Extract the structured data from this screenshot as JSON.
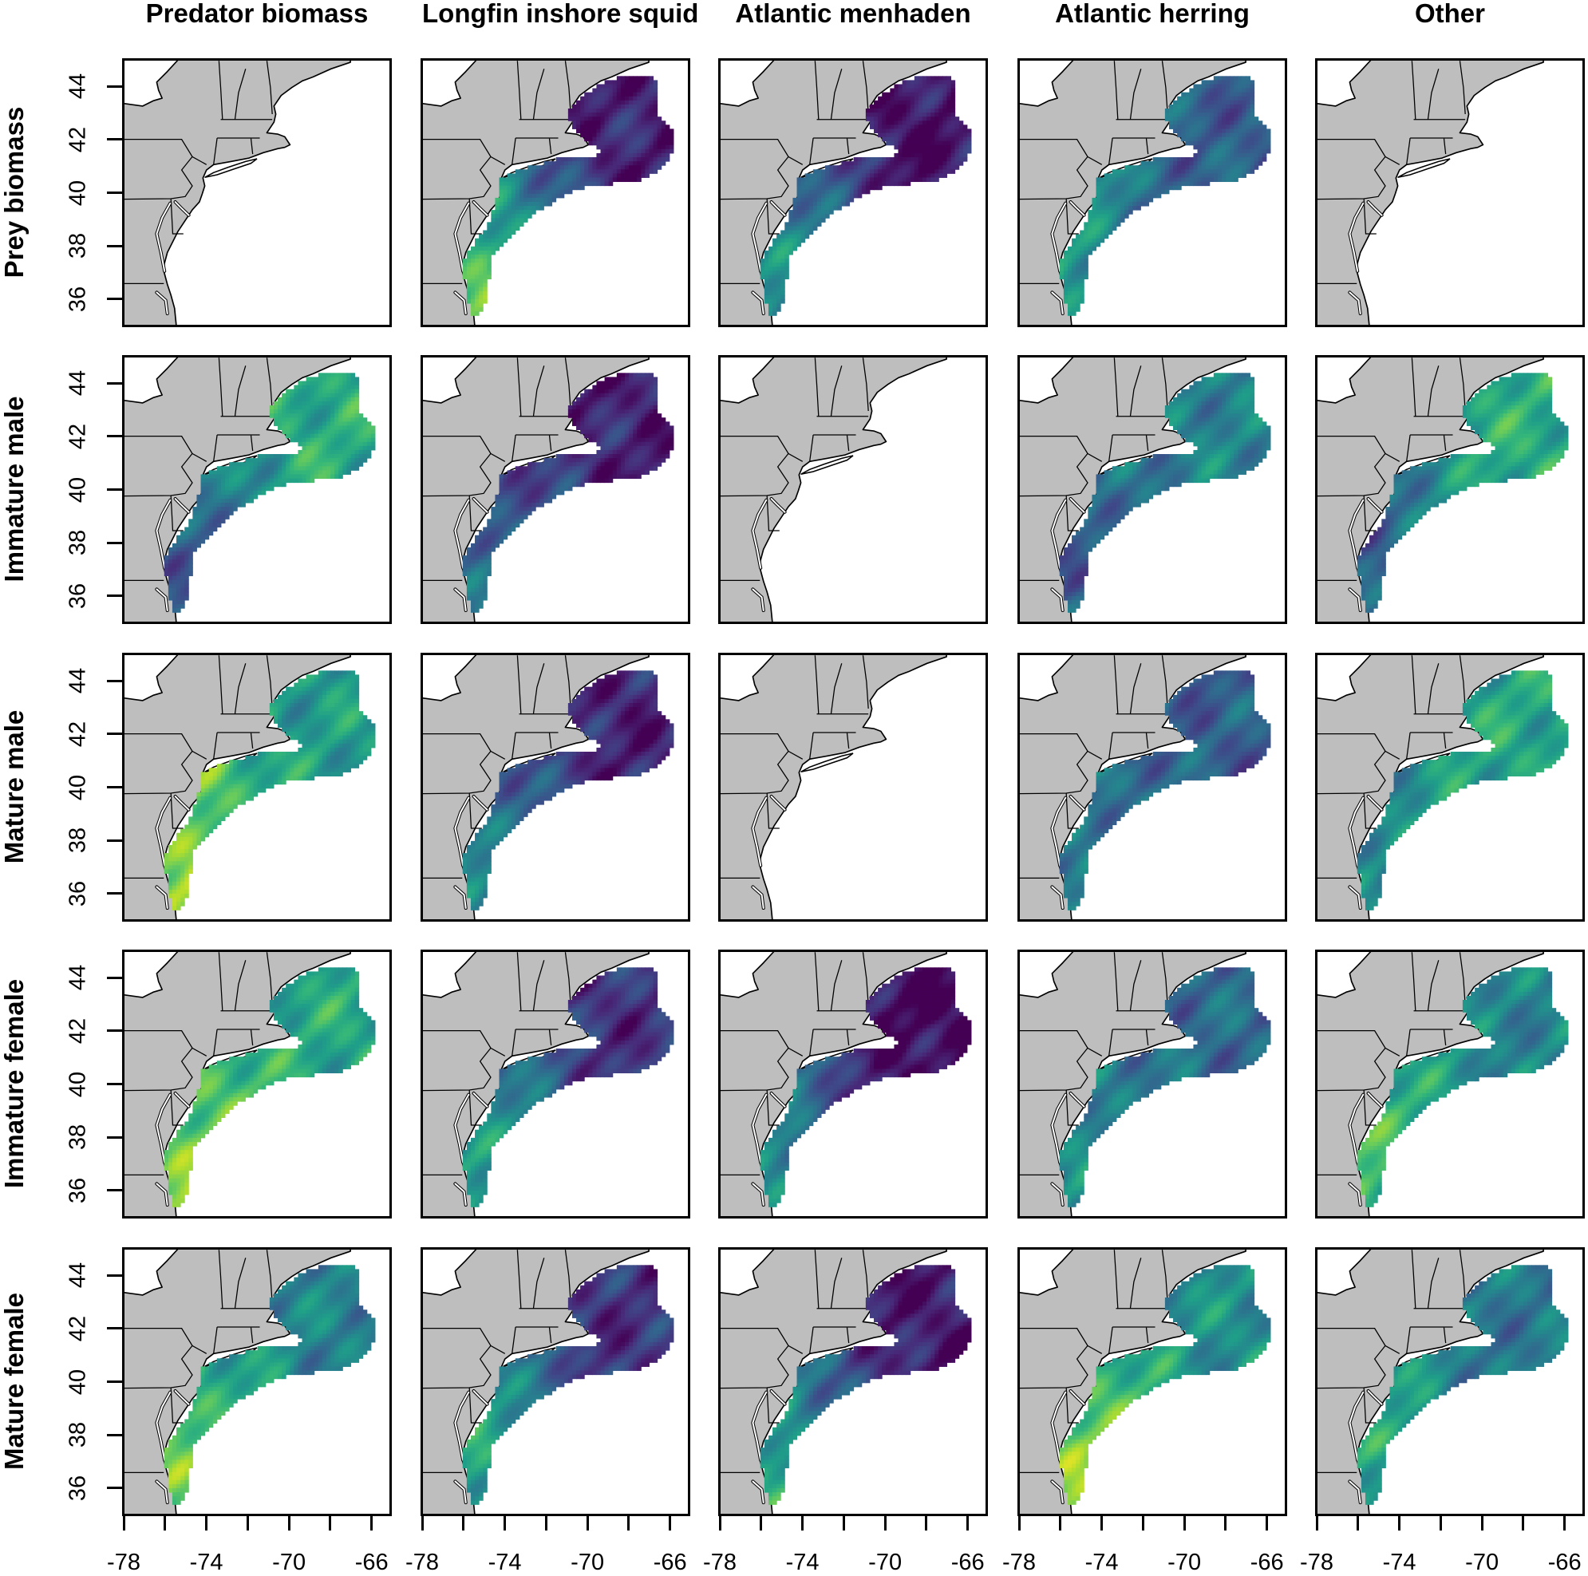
{
  "chart_data": {
    "type": "heatmap",
    "colormap": "viridis",
    "column_titles": [
      "Predator biomass",
      "Longfin inshore squid",
      "Atlantic menhaden",
      "Atlantic herring",
      "Other"
    ],
    "row_labels": [
      "Prey biomass",
      "Immature male",
      "Mature male",
      "Immature female",
      "Mature female"
    ],
    "x_ticks": [
      "-78",
      "-74",
      "-70",
      "-66"
    ],
    "x_tick_values": [
      -78,
      -74,
      -70,
      -66
    ],
    "y_ticks": [
      "44",
      "42",
      "40",
      "38",
      "36"
    ],
    "y_tick_values": [
      44,
      42,
      40,
      38,
      36
    ],
    "xlim": [
      -78,
      -65.1
    ],
    "ylim": [
      35,
      45
    ],
    "land_color": "#bebebe",
    "panels": [
      [
        {
          "has_data": false
        },
        {
          "has_data": true,
          "level_south": 0.72,
          "level_north": 0.1
        },
        {
          "has_data": true,
          "level_south": 0.5,
          "level_north": 0.05
        },
        {
          "has_data": true,
          "level_south": 0.55,
          "level_north": 0.3
        },
        {
          "has_data": false
        }
      ],
      [
        {
          "has_data": true,
          "level_south": 0.3,
          "level_north": 0.62
        },
        {
          "has_data": true,
          "level_south": 0.35,
          "level_north": 0.1
        },
        {
          "has_data": false
        },
        {
          "has_data": true,
          "level_south": 0.3,
          "level_north": 0.45
        },
        {
          "has_data": true,
          "level_south": 0.3,
          "level_north": 0.62
        }
      ],
      [
        {
          "has_data": true,
          "level_south": 0.85,
          "level_north": 0.55
        },
        {
          "has_data": true,
          "level_south": 0.45,
          "level_north": 0.1
        },
        {
          "has_data": false
        },
        {
          "has_data": true,
          "level_south": 0.45,
          "level_north": 0.3
        },
        {
          "has_data": true,
          "level_south": 0.45,
          "level_north": 0.6
        }
      ],
      [
        {
          "has_data": true,
          "level_south": 0.8,
          "level_north": 0.6
        },
        {
          "has_data": true,
          "level_south": 0.55,
          "level_north": 0.15
        },
        {
          "has_data": true,
          "level_south": 0.5,
          "level_north": 0.02
        },
        {
          "has_data": true,
          "level_south": 0.5,
          "level_north": 0.35
        },
        {
          "has_data": true,
          "level_south": 0.7,
          "level_north": 0.45
        }
      ],
      [
        {
          "has_data": true,
          "level_south": 0.75,
          "level_north": 0.45
        },
        {
          "has_data": true,
          "level_south": 0.6,
          "level_north": 0.15
        },
        {
          "has_data": true,
          "level_south": 0.6,
          "level_north": 0.08
        },
        {
          "has_data": true,
          "level_south": 0.8,
          "level_north": 0.5
        },
        {
          "has_data": true,
          "level_south": 0.6,
          "level_north": 0.4
        }
      ]
    ]
  }
}
